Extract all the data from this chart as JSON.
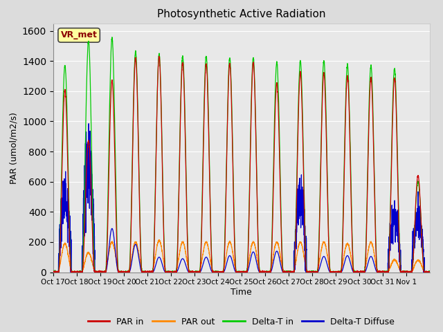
{
  "title": "Photosynthetic Active Radiation",
  "ylabel": "PAR (umol/m2/s)",
  "xlabel": "Time",
  "ylim": [
    0,
    1650
  ],
  "fig_bg": "#dcdcdc",
  "plot_bg": "#e8e8e8",
  "legend_labels": [
    "PAR in",
    "PAR out",
    "Delta-T in",
    "Delta-T Diffuse"
  ],
  "legend_colors": [
    "#cc0000",
    "#ff8800",
    "#00cc00",
    "#0000cc"
  ],
  "annotation_text": "VR_met",
  "annotation_box_color": "#ffffa0",
  "annotation_text_color": "#8b0000",
  "n_days": 16,
  "pts_per_day": 288,
  "peaks_green": [
    1370,
    1530,
    1550,
    1460,
    1440,
    1430,
    1430,
    1420,
    1420,
    1390,
    1400,
    1400,
    1370,
    1370,
    1350,
    600
  ],
  "peaks_red": [
    1210,
    870,
    1270,
    1420,
    1430,
    1390,
    1380,
    1380,
    1390,
    1250,
    1320,
    1320,
    1300,
    1290,
    1290,
    640
  ],
  "peaks_orange": [
    190,
    130,
    200,
    200,
    210,
    200,
    200,
    200,
    200,
    200,
    200,
    200,
    190,
    200,
    85,
    80
  ],
  "peaks_blue": [
    550,
    800,
    290,
    185,
    100,
    90,
    100,
    110,
    135,
    140,
    560,
    105,
    110,
    105,
    400,
    400
  ],
  "blue_noisy": [
    1,
    1,
    0,
    0,
    0,
    0,
    0,
    0,
    0,
    0,
    1,
    0,
    0,
    0,
    1,
    1
  ],
  "tick_labels": [
    "Oct 17",
    "Oct 18",
    "Oct 19",
    "Oct 20",
    "Oct 21",
    "Oct 22",
    "Oct 23",
    "Oct 24",
    "Oct 25",
    "Oct 26",
    "Oct 27",
    "Oct 28",
    "Oct 29",
    "Oct 30",
    "Oct 31",
    "Nov 1"
  ]
}
